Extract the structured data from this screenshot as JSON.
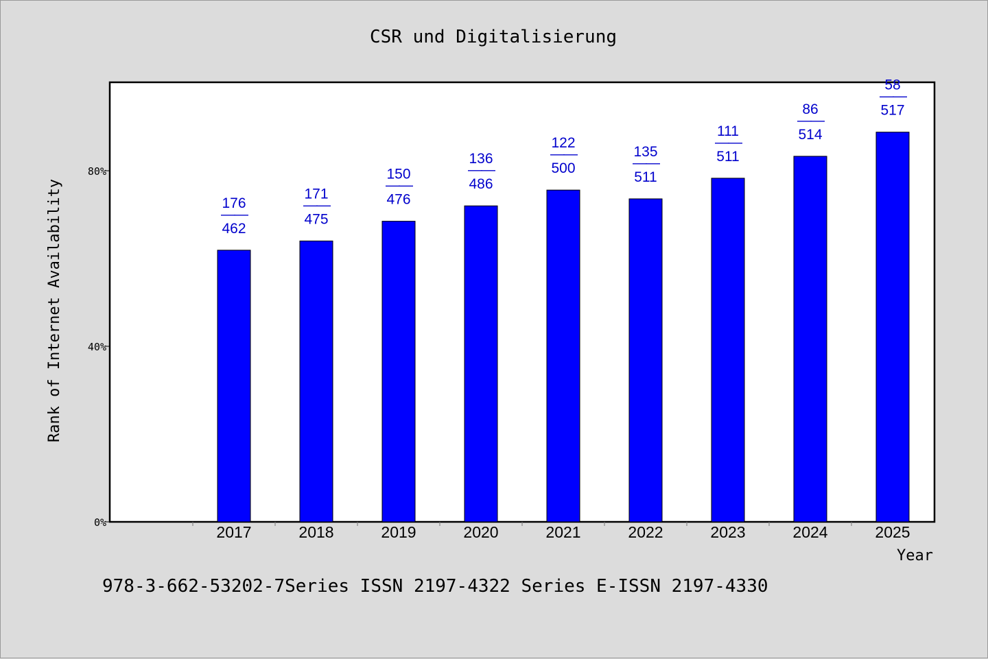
{
  "chart_data": {
    "type": "bar",
    "title": "CSR und Digitalisierung",
    "xlabel": "Year",
    "ylabel": "Rank of Internet Availability",
    "categories": [
      "2017",
      "2018",
      "2019",
      "2020",
      "2021",
      "2022",
      "2023",
      "2024",
      "2025"
    ],
    "values": [
      61.9,
      64.0,
      68.5,
      72.0,
      75.6,
      73.6,
      78.3,
      83.3,
      88.8
    ],
    "data_labels": [
      {
        "top": "176",
        "sep": "——",
        "bottom": "462"
      },
      {
        "top": "171",
        "sep": "——",
        "bottom": "475"
      },
      {
        "top": "150",
        "sep": "——",
        "bottom": "476"
      },
      {
        "top": "136",
        "sep": "——",
        "bottom": "486"
      },
      {
        "top": "122",
        "sep": "——",
        "bottom": "500"
      },
      {
        "top": "135",
        "sep": "——",
        "bottom": "511"
      },
      {
        "top": "111",
        "sep": "——",
        "bottom": "511"
      },
      {
        "top": "86",
        "sep": "——",
        "bottom": "514"
      },
      {
        "top": "58",
        "sep": "——",
        "bottom": "517"
      }
    ],
    "yticks": [
      0,
      40,
      80
    ],
    "ytick_labels": [
      "0%",
      "40%",
      "80%"
    ],
    "ylim": [
      0,
      100
    ],
    "grid": false,
    "colors": {
      "bar": "#0000ff",
      "label": "#0000cc",
      "background": "#dcdcdc",
      "plot_area": "#ffffff"
    }
  },
  "footer": "978-3-662-53202-7Series ISSN 2197-4322 Series E-ISSN 2197-4330"
}
